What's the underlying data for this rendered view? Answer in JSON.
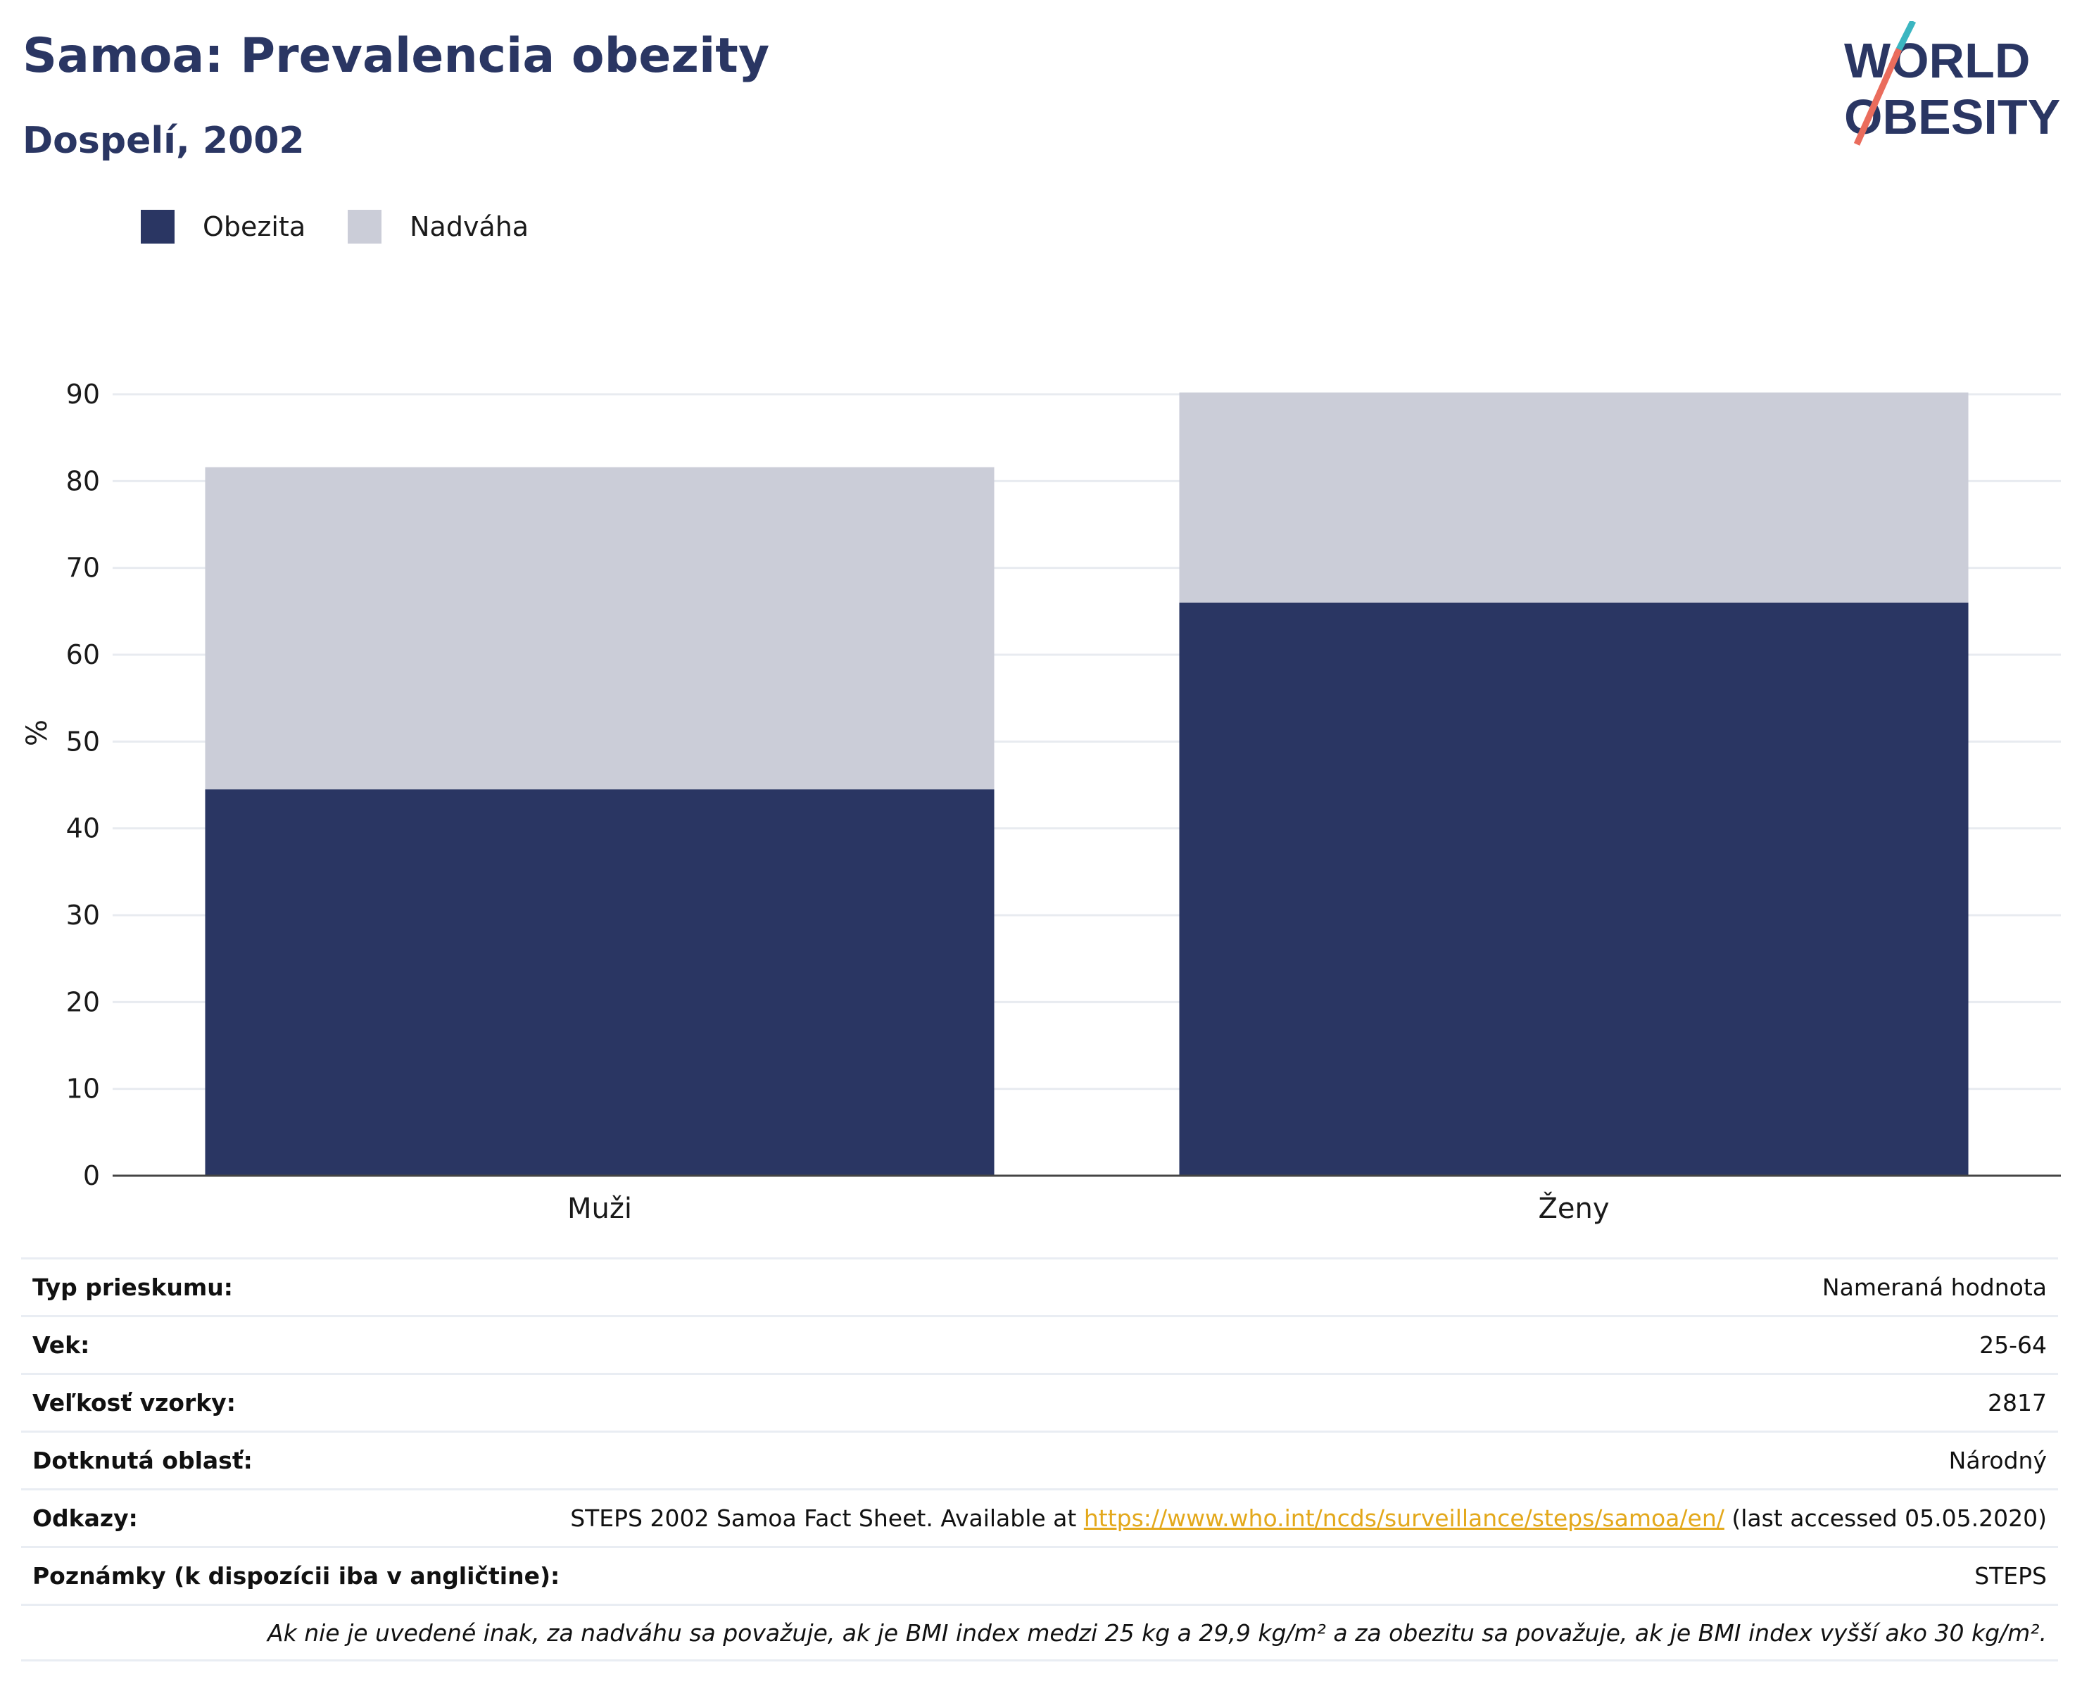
{
  "header": {
    "title": "Samoa: Prevalencia obezity",
    "subtitle": "Dospelí, 2002"
  },
  "logo": {
    "line1": "WORLD",
    "line2": "OBESITY"
  },
  "colors": {
    "obesity": "#2a3663",
    "overweight": "#cbcdd8",
    "link": "#e3a81b",
    "logo_teal": "#3bb6c1",
    "logo_coral": "#ea6c5c"
  },
  "chart_data": {
    "type": "bar",
    "stacked": true,
    "categories": [
      "Muži",
      "Ženy"
    ],
    "series": [
      {
        "name": "Obezita",
        "values": [
          44.5,
          66.0
        ]
      },
      {
        "name": "Nadváha",
        "values": [
          37.1,
          24.2
        ]
      }
    ],
    "ylabel": "%",
    "ylim": [
      0,
      90
    ],
    "yticks": [
      0,
      10,
      20,
      30,
      40,
      50,
      60,
      70,
      80,
      90
    ],
    "grid": true,
    "legend_position": "top-left"
  },
  "details": [
    {
      "label": "Typ prieskumu:",
      "value": "Nameraná hodnota"
    },
    {
      "label": "Vek:",
      "value": "25-64"
    },
    {
      "label": "Veľkosť vzorky:",
      "value": "2817"
    },
    {
      "label": "Dotknutá oblasť:",
      "value": "Národný"
    },
    {
      "label": "Odkazy:",
      "value_pre": "STEPS 2002 Samoa Fact Sheet. Available at ",
      "link": "https://www.who.int/ncds/surveillance/steps/samoa/en/",
      "value_post": " (last accessed 05.05.2020)"
    },
    {
      "label": "Poznámky (k dispozícii iba v angličtine):",
      "value": "STEPS"
    }
  ],
  "note": "Ak nie je uvedené inak, za nadváhu sa považuje, ak je BMI index medzi 25 kg a 29,9 kg/m² a za obezitu sa považuje, ak je BMI index vyšší ako 30 kg/m²."
}
